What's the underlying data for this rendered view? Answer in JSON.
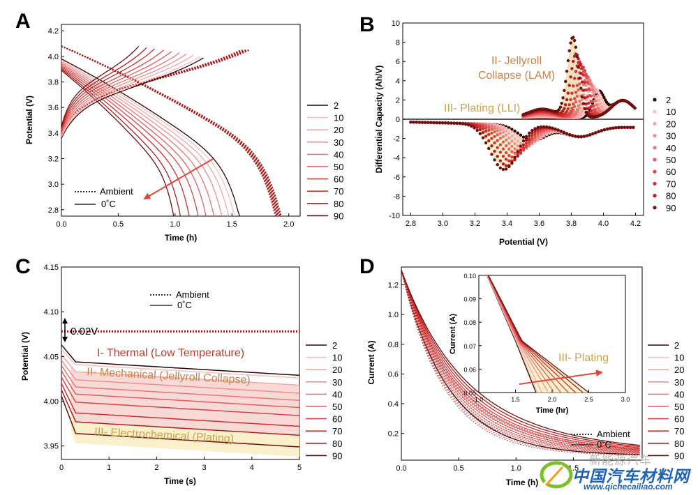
{
  "colors": {
    "series": [
      "#2a0404",
      "#f8c0c0",
      "#f4a7a7",
      "#ef8e8e",
      "#ea7575",
      "#e25c5c",
      "#d94343",
      "#cf2e2e",
      "#b21c1c",
      "#6a1010"
    ],
    "ambient_dot": "#b01818",
    "arrow": "#e0443c",
    "fill_tan": "#f3e0bd",
    "fill_cream": "#fbf0cc",
    "fill_pink": "#f6d0cc",
    "ann_thermal": "#c0392b",
    "ann_mech": "#c9824a",
    "ann_plating": "#c9a24a"
  },
  "legend_cycles": [
    "2",
    "10",
    "20",
    "30",
    "40",
    "50",
    "60",
    "70",
    "80",
    "90"
  ],
  "watermark": {
    "line1": "新能源汽车",
    "line2": "中国汽车材料网",
    "url": "www.qichecailiao.com"
  },
  "chart_data": [
    {
      "panel": "A",
      "type": "line",
      "xlabel": "Time (h)",
      "ylabel": "Potential (V)",
      "xlim": [
        0,
        2.1
      ],
      "ylim": [
        2.75,
        4.25
      ],
      "xticks": [
        "0.0",
        "0.5",
        "1.0",
        "1.5",
        "2.0"
      ],
      "yticks": [
        "2.8",
        "3.0",
        "3.2",
        "3.4",
        "3.6",
        "3.8",
        "4.0",
        "4.2"
      ],
      "style_legend": [
        "Ambient",
        "0˚C"
      ],
      "series_legend": [
        "2",
        "10",
        "20",
        "30",
        "40",
        "50",
        "60",
        "70",
        "80",
        "90"
      ],
      "cold_discharge_end_h": [
        1.62,
        1.58,
        1.53,
        1.47,
        1.4,
        1.33,
        1.26,
        1.18,
        1.1,
        1.04
      ],
      "cold_charge_end_h": [
        1.25,
        1.22,
        1.16,
        1.1,
        1.04,
        0.97,
        0.9,
        0.82,
        0.75,
        0.68
      ],
      "ambient_discharge_end_h": [
        1.97,
        1.96,
        1.96,
        1.95,
        1.95,
        1.94,
        1.94,
        1.93,
        1.93,
        1.92
      ],
      "ambient_charge_end_h": [
        1.65,
        1.64,
        1.63,
        1.63,
        1.62,
        1.61,
        1.6,
        1.6,
        1.59,
        1.58
      ]
    },
    {
      "panel": "B",
      "type": "scatter",
      "xlabel": "Potential (V)",
      "ylabel": "Differential Capacity (Ah/V)",
      "xlim": [
        2.75,
        4.25
      ],
      "ylim": [
        -10,
        10
      ],
      "xticks": [
        "2.8",
        "3.0",
        "3.2",
        "3.4",
        "3.6",
        "3.8",
        "4.0",
        "4.2"
      ],
      "yticks": [
        "-10",
        "-8",
        "-6",
        "-4",
        "-2",
        "0",
        "2",
        "4",
        "6",
        "8",
        "10"
      ],
      "series_legend": [
        "2",
        "10",
        "20",
        "30",
        "40",
        "50",
        "60",
        "70",
        "80",
        "90"
      ],
      "annotations": [
        "II- Jellyroll",
        "Collapse (LAM)",
        "III- Plating (LLI)"
      ],
      "charge_peak": {
        "x": [
          3.97,
          3.95,
          3.93,
          3.91,
          3.9,
          3.88,
          3.87,
          3.85,
          3.83,
          3.81
        ],
        "y": [
          2.6,
          2.9,
          3.3,
          3.8,
          4.3,
          4.8,
          5.3,
          5.8,
          6.6,
          8.3
        ]
      },
      "discharge_valley": {
        "x": [
          3.56,
          3.54,
          3.52,
          3.5,
          3.48,
          3.46,
          3.44,
          3.42,
          3.4,
          3.38
        ],
        "y": [
          -1.6,
          -1.8,
          -2.1,
          -2.4,
          -2.7,
          -3.0,
          -3.4,
          -3.8,
          -4.3,
          -4.7
        ]
      }
    },
    {
      "panel": "C",
      "type": "line",
      "xlabel": "Time (s)",
      "ylabel": "Potential (V)",
      "xlim": [
        0,
        5
      ],
      "ylim": [
        3.935,
        4.15
      ],
      "xticks": [
        "0",
        "1",
        "2",
        "3",
        "4",
        "5"
      ],
      "yticks": [
        "3.95",
        "4.00",
        "4.05",
        "4.10",
        "4.15"
      ],
      "style_legend": [
        "Ambient",
        "0˚C"
      ],
      "series_legend": [
        "2",
        "10",
        "20",
        "30",
        "40",
        "50",
        "60",
        "70",
        "80",
        "90"
      ],
      "ambient_potential_v": 4.078,
      "cold_start_v": [
        4.063,
        4.058,
        4.052,
        4.046,
        4.04,
        4.034,
        4.027,
        4.02,
        4.013,
        4.006
      ],
      "cold_end_v": [
        4.029,
        4.026,
        4.018,
        4.009,
        4.001,
        3.993,
        3.984,
        3.972,
        3.962,
        3.949
      ],
      "gap_label": "0.02V",
      "annotations": [
        "I- Thermal (Low Temperature)",
        "II- Mechanical (Jellyroll Collapse)",
        "III- Electrochemical (Plating)"
      ]
    },
    {
      "panel": "D",
      "type": "line",
      "xlabel": "Time (h)",
      "ylabel": "Current (A)",
      "xlim": [
        0,
        2.1
      ],
      "ylim": [
        0.02,
        1.32
      ],
      "xticks": [
        "0.0",
        "0.5",
        "1.0",
        "1.5"
      ],
      "yticks": [
        "0.2",
        "0.4",
        "0.6",
        "0.8",
        "1.0",
        "1.2"
      ],
      "style_legend": [
        "Ambient",
        "0˚C"
      ],
      "series_legend": [
        "2",
        "10",
        "20",
        "30",
        "40",
        "50",
        "60",
        "70",
        "80",
        "90"
      ],
      "inset": {
        "xlabel": "Time (hr)",
        "ylabel": "Current (A)",
        "xlim": [
          1.0,
          3.0
        ],
        "ylim": [
          0.05,
          0.1
        ],
        "xticks": [
          "1.0",
          "1.5",
          "2.0",
          "2.5",
          "3.0"
        ],
        "yticks": [
          "0.05",
          "0.06",
          "0.07",
          "0.08",
          "0.09",
          "0.10"
        ],
        "annotation": "III- Plating",
        "end_h_at_0_05A": [
          1.78,
          1.8,
          1.86,
          1.95,
          2.03,
          2.12,
          2.22,
          2.32,
          2.42,
          2.5
        ]
      }
    }
  ]
}
